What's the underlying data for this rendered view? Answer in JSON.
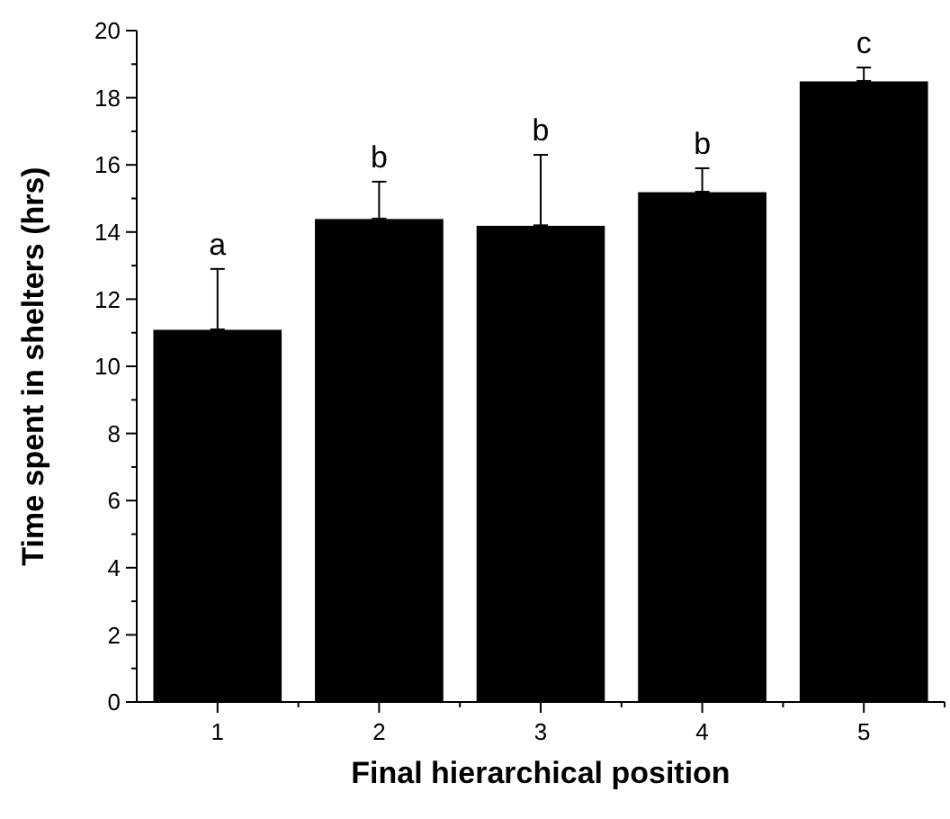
{
  "chart_data": {
    "type": "bar",
    "xlabel": "Final hierarchical position",
    "ylabel": "Time spent in shelters (hrs)",
    "categories": [
      "1",
      "2",
      "3",
      "4",
      "5"
    ],
    "values": [
      11.1,
      14.4,
      14.2,
      15.2,
      18.5
    ],
    "errors": [
      [
        11.1,
        12.9
      ],
      [
        14.4,
        15.5
      ],
      [
        14.2,
        16.3
      ],
      [
        15.2,
        15.9
      ],
      [
        18.5,
        18.9
      ]
    ],
    "color": "#000000",
    "ylim": [
      0,
      20
    ],
    "yticks": [
      0,
      2,
      4,
      6,
      8,
      10,
      12,
      14,
      16,
      18,
      20
    ],
    "grid": false,
    "annotations": [
      {
        "text": "a",
        "x": "1",
        "y": 12.9
      },
      {
        "text": "b",
        "x": "2",
        "y": 15.5
      },
      {
        "text": "b",
        "x": "3",
        "y": 16.3
      },
      {
        "text": "b",
        "x": "4",
        "y": 15.9
      },
      {
        "text": "c",
        "x": "5",
        "y": 18.9
      }
    ]
  }
}
